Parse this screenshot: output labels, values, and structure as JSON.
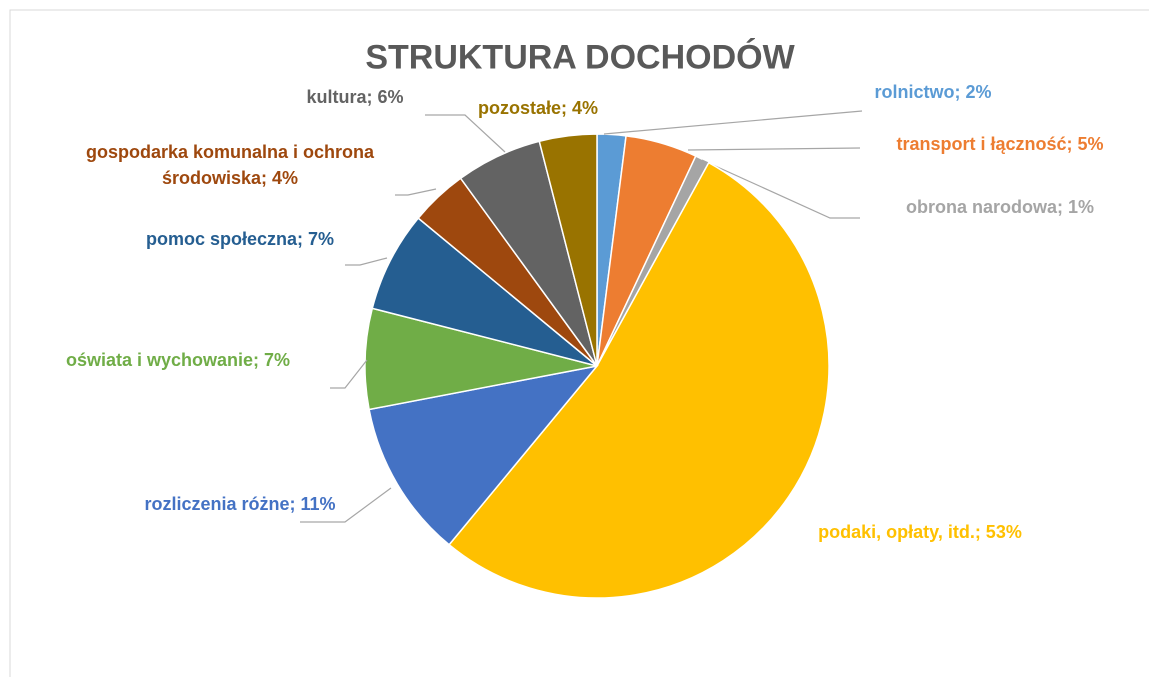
{
  "chart_data": {
    "type": "pie",
    "title": "STRUKTURA DOCHODÓW",
    "values": [
      2,
      5,
      1,
      53,
      11,
      7,
      7,
      4,
      6,
      4
    ],
    "value_labels": [
      "rolnictwo; 2%",
      "transport i łączność; 5%",
      "obrona narodowa; 1%",
      "podaki, opłaty, itd.; 53%",
      "rozliczenia różne; 11%",
      "oświata i wychowanie; 7%",
      "pomoc społeczna; 7%",
      "gospodarka komunalna i ochrona środowiska; 4%",
      "kultura; 6%",
      "pozostałe; 4%"
    ],
    "colors": [
      "#5b9bd5",
      "#ed7d31",
      "#a5a5a5",
      "#ffc000",
      "#4472c4",
      "#70ad47",
      "#255e91",
      "#9e480e",
      "#636363",
      "#997300"
    ]
  }
}
